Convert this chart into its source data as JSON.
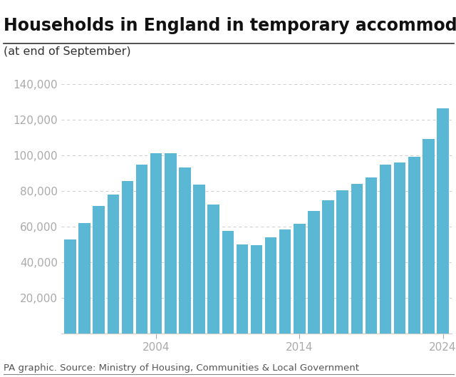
{
  "title": "Households in England in temporary accommodation",
  "subtitle": "(at end of September)",
  "source": "PA graphic. Source: Ministry of Housing, Communities & Local Government",
  "bar_color": "#5BB8D4",
  "background_color": "#ffffff",
  "years": [
    1998,
    1999,
    2000,
    2001,
    2002,
    2003,
    2004,
    2005,
    2006,
    2007,
    2008,
    2009,
    2010,
    2011,
    2012,
    2013,
    2014,
    2015,
    2016,
    2017,
    2018,
    2019,
    2020,
    2021,
    2022,
    2023,
    2024
  ],
  "values": [
    53000,
    62000,
    71500,
    78000,
    85500,
    95000,
    101500,
    101500,
    93500,
    83500,
    72500,
    57500,
    50000,
    49500,
    54000,
    58500,
    61500,
    69000,
    75000,
    80500,
    84000,
    87500,
    95000,
    96000,
    99500,
    109500,
    126500
  ],
  "x_tick_labels": [
    "2004",
    "2014",
    "2024"
  ],
  "x_tick_positions": [
    6,
    16,
    26
  ],
  "ylim": [
    0,
    145000
  ],
  "yticks": [
    20000,
    40000,
    60000,
    80000,
    100000,
    120000,
    140000
  ],
  "title_fontsize": 17,
  "subtitle_fontsize": 11.5,
  "source_fontsize": 9.5,
  "tick_fontsize": 11,
  "grid_color": "#cccccc",
  "tick_color": "#aaaaaa",
  "title_color": "#111111",
  "subtitle_color": "#333333",
  "source_color": "#555555"
}
